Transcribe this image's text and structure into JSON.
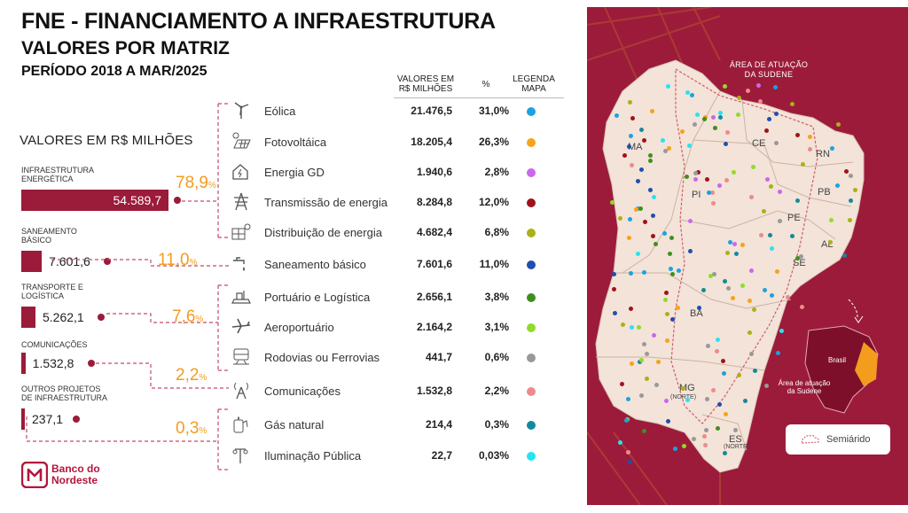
{
  "title": {
    "line1": "FNE - FINANCIAMENTO A INFRAESTRUTURA",
    "line2": "VALORES POR MATRIZ",
    "line3": "PERÍODO 2018 A MAR/2025"
  },
  "subtitle": "VALORES EM R$ MILHÕES",
  "table_headers": {
    "valores_line1": "VALORES EM",
    "valores_line2": "R$ MILHÕES",
    "pct": "%",
    "legenda_line1": "LEGENDA",
    "legenda_line2": "MAPA"
  },
  "chart_data": {
    "type": "bar",
    "categories": [
      "INFRAESTRUTURA ENERGÉTICA",
      "SANEAMENTO BÁSICO",
      "TRANSPORTE E LOGÍSTICA",
      "COMUNICAÇÕES",
      "OUTROS PROJETOS DE INFRAESTRUTURA"
    ],
    "category_lines": [
      [
        "INFRAESTRUTURA",
        "ENERGÉTICA"
      ],
      [
        "SANEAMENTO",
        "BÁSICO"
      ],
      [
        "TRANSPORTE E",
        "LOGÍSTICA"
      ],
      [
        "COMUNICAÇÕES"
      ],
      [
        "OUTROS PROJETOS",
        "DE INFRAESTRUTURA"
      ]
    ],
    "values": [
      54589.7,
      7601.6,
      5262.1,
      1532.8,
      237.1
    ],
    "value_labels": [
      "54.589,7",
      "7.601,6",
      "5.262,1",
      "1.532,8",
      "237,1"
    ],
    "percent_labels": [
      "78,9",
      "11,0",
      "7,6",
      "2,2",
      "0,3"
    ],
    "percent_suffix": "%",
    "bar_color": "#9b1b3a",
    "percent_color": "#f39c1e"
  },
  "breakdown": [
    {
      "label": "Eólica",
      "value": "21.476,5",
      "pct": "31,0%",
      "color": "#1aa3e0",
      "icon": "wind-turbine-icon"
    },
    {
      "label": "Fotovoltáica",
      "value": "18.205,4",
      "pct": "26,3%",
      "color": "#f7a21b",
      "icon": "solar-panel-icon"
    },
    {
      "label": "Energia GD",
      "value": "1.940,6",
      "pct": "2,8%",
      "color": "#cc66ee",
      "icon": "house-energy-icon"
    },
    {
      "label": "Transmissão de energia",
      "value": "8.284,8",
      "pct": "12,0%",
      "color": "#a0121c",
      "icon": "transmission-tower-icon"
    },
    {
      "label": "Distribuição de energia",
      "value": "4.682,4",
      "pct": "6,8%",
      "color": "#aab116",
      "icon": "distribution-grid-icon"
    },
    {
      "label": "Saneamento básico",
      "value": "7.601,6",
      "pct": "11,0%",
      "color": "#1f4fb0",
      "icon": "water-tap-icon"
    },
    {
      "label": "Portuário e Logística",
      "value": "2.656,1",
      "pct": "3,8%",
      "color": "#3f8f1e",
      "icon": "port-icon"
    },
    {
      "label": "Aeroportuário",
      "value": "2.164,2",
      "pct": "3,1%",
      "color": "#8fdc2a",
      "icon": "airplane-icon"
    },
    {
      "label": "Rodovias ou Ferrovias",
      "value": "441,7",
      "pct": "0,6%",
      "color": "#999999",
      "icon": "railway-icon"
    },
    {
      "label": "Comunicações",
      "value": "1.532,8",
      "pct": "2,2%",
      "color": "#ef8a8a",
      "icon": "antenna-icon"
    },
    {
      "label": "Gás natural",
      "value": "214,4",
      "pct": "0,3%",
      "color": "#138a9c",
      "icon": "gas-icon"
    },
    {
      "label": "Iluminação Pública",
      "value": "22,7",
      "pct": "0,03%",
      "color": "#28e3f2",
      "icon": "street-light-icon"
    }
  ],
  "map": {
    "title_line1": "ÁREA DE ATUAÇÃO",
    "title_line2": "DA SUDENE",
    "states": [
      "MA",
      "CE",
      "RN",
      "PB",
      "PI",
      "PE",
      "AL",
      "SE",
      "BA",
      "MG",
      "(NORTE)",
      "ES",
      "(NORTE)"
    ],
    "inset_brasil": "Brasil",
    "inset_sudene_line1": "Área de atuação",
    "inset_sudene_line2": "da Sudene",
    "legend_label": "Semiárido",
    "panel_color": "#9c1b3b",
    "land_color": "#f3e3d8"
  },
  "logo": {
    "line1": "Banco do",
    "line2": "Nordeste",
    "color": "#b3163c"
  }
}
